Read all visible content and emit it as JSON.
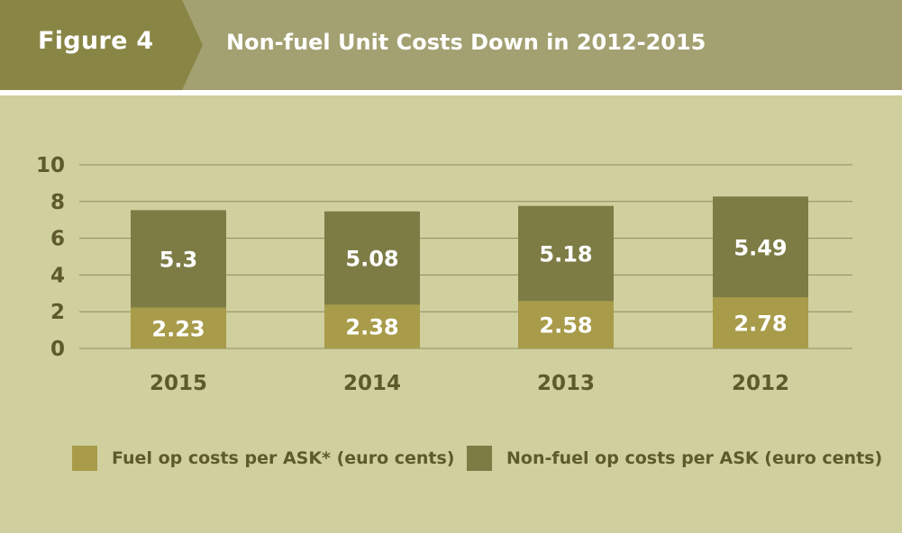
{
  "header": {
    "figure_label": "Figure 4",
    "title": "Non-fuel Unit Costs Down in 2012-2015"
  },
  "colors": {
    "header_tab": "#888545",
    "header_bar": "#a3a071",
    "panel": "#d0cf9e",
    "fuel": "#a89b4a",
    "nonfuel": "#7d7c45",
    "text": "#5e5a2d",
    "grid": "#8e8c60"
  },
  "legend": {
    "fuel": "Fuel op costs per ASK* (euro cents)",
    "nonfuel": "Non-fuel op costs per ASK (euro cents)"
  },
  "chart_data": {
    "type": "bar",
    "stacked": true,
    "categories": [
      "2015",
      "2014",
      "2013",
      "2012"
    ],
    "series": [
      {
        "name": "Fuel op costs per ASK* (euro cents)",
        "values": [
          2.23,
          2.38,
          2.58,
          2.78
        ]
      },
      {
        "name": "Non-fuel op costs per ASK (euro cents)",
        "values": [
          5.3,
          5.08,
          5.18,
          5.49
        ]
      }
    ],
    "ylim": [
      0,
      10
    ],
    "yticks": [
      0,
      2,
      4,
      6,
      8,
      10
    ],
    "grid": true,
    "data_labels": true,
    "legend_position": "bottom"
  }
}
